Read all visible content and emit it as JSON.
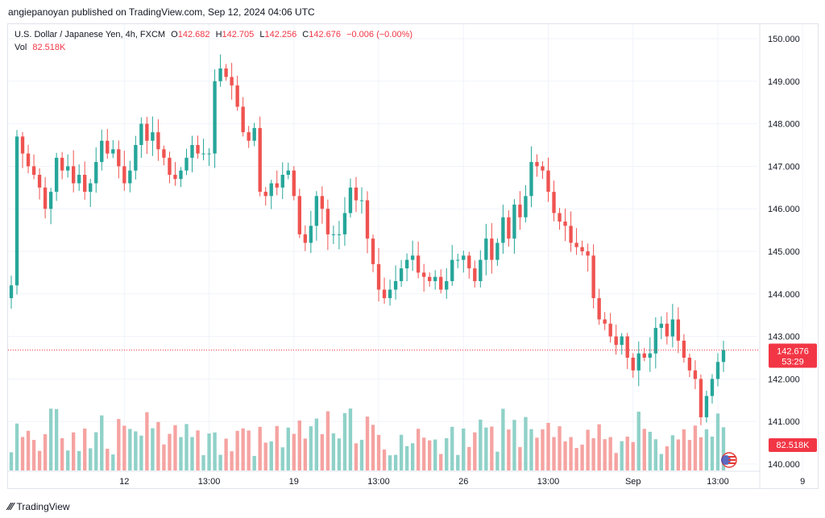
{
  "header": {
    "publisher_line": "angiepanoyan published on TradingView.com, Sep 12, 2024 04:06 UTC"
  },
  "legend": {
    "symbol": "U.S. Dollar / Japanese Yen, 4h, FXCM",
    "open_label": "O",
    "open": "142.682",
    "high_label": "H",
    "high": "142.705",
    "low_label": "L",
    "low": "142.256",
    "close_label": "C",
    "close": "142.676",
    "change": "−0.006 (−0.00%)",
    "vol_label": "Vol",
    "vol": "82.518K"
  },
  "price_badge": {
    "price": "142.676",
    "countdown": "53:29"
  },
  "vol_badge": "82.518K",
  "footer": {
    "brand": "TradingView"
  },
  "colors": {
    "up": "#26a69a",
    "down": "#ef5350",
    "vol_up": "#8fd1c8",
    "vol_down": "#f5a3a1",
    "badge": "#f23645"
  },
  "chart_data": {
    "type": "candlestick",
    "symbol": "USDJPY",
    "interval": "4h",
    "y_ticks": [
      140.0,
      141.0,
      142.0,
      143.0,
      144.0,
      145.0,
      146.0,
      147.0,
      148.0,
      149.0,
      150.0
    ],
    "y_tick_labels": [
      "140.000",
      "141.000",
      "142.000",
      "143.000",
      "144.000",
      "145.000",
      "146.000",
      "147.000",
      "148.000",
      "149.000",
      "150.000"
    ],
    "ylim": [
      139.85,
      150.15
    ],
    "x_tick_labels": [
      {
        "label": "12",
        "bar": 20
      },
      {
        "label": "13:00",
        "bar": 35
      },
      {
        "label": "19",
        "bar": 50
      },
      {
        "label": "13:00",
        "bar": 65
      },
      {
        "label": "26",
        "bar": 80
      },
      {
        "label": "13:00",
        "bar": 95
      },
      {
        "label": "Sep",
        "bar": 110
      },
      {
        "label": "13:00",
        "bar": 125
      },
      {
        "label": "9",
        "bar": 140
      },
      {
        "label": "13:00",
        "bar": 150
      },
      {
        "label": "12",
        "bar": 160
      }
    ],
    "close_series": [
      144.2,
      147.7,
      147.3,
      147.0,
      146.8,
      146.5,
      146.0,
      146.4,
      147.2,
      146.9,
      147.0,
      146.6,
      146.8,
      146.4,
      146.6,
      147.1,
      147.6,
      147.3,
      147.4,
      147.0,
      146.6,
      146.9,
      147.5,
      148.0,
      147.6,
      147.8,
      147.4,
      147.2,
      146.8,
      146.7,
      146.9,
      147.2,
      147.5,
      147.3,
      147.3,
      147.3,
      149.0,
      149.3,
      149.1,
      148.9,
      148.4,
      147.8,
      147.6,
      147.9,
      146.4,
      146.3,
      146.6,
      146.5,
      146.8,
      146.9,
      146.3,
      145.4,
      145.2,
      145.6,
      146.3,
      146.0,
      145.4,
      145.4,
      145.4,
      145.9,
      146.5,
      146.2,
      146.2,
      145.3,
      144.7,
      144.1,
      143.9,
      144.1,
      144.3,
      144.6,
      144.8,
      144.9,
      144.5,
      144.4,
      144.3,
      144.4,
      144.1,
      144.3,
      144.8,
      144.8,
      144.9,
      144.6,
      144.3,
      144.8,
      145.3,
      144.8,
      145.2,
      145.8,
      145.3,
      146.1,
      145.8,
      146.3,
      147.1,
      147.0,
      146.9,
      146.4,
      145.9,
      145.7,
      145.6,
      145.2,
      145.1,
      145.0,
      144.9,
      143.9,
      143.4,
      143.3,
      143.0,
      142.8,
      143.0,
      142.5,
      142.2,
      142.6,
      142.5,
      142.6,
      143.2,
      143.3,
      143.0,
      143.4,
      142.9,
      142.5,
      142.2,
      142.0,
      141.1,
      141.6,
      142.0,
      142.4,
      142.68
    ]
  }
}
